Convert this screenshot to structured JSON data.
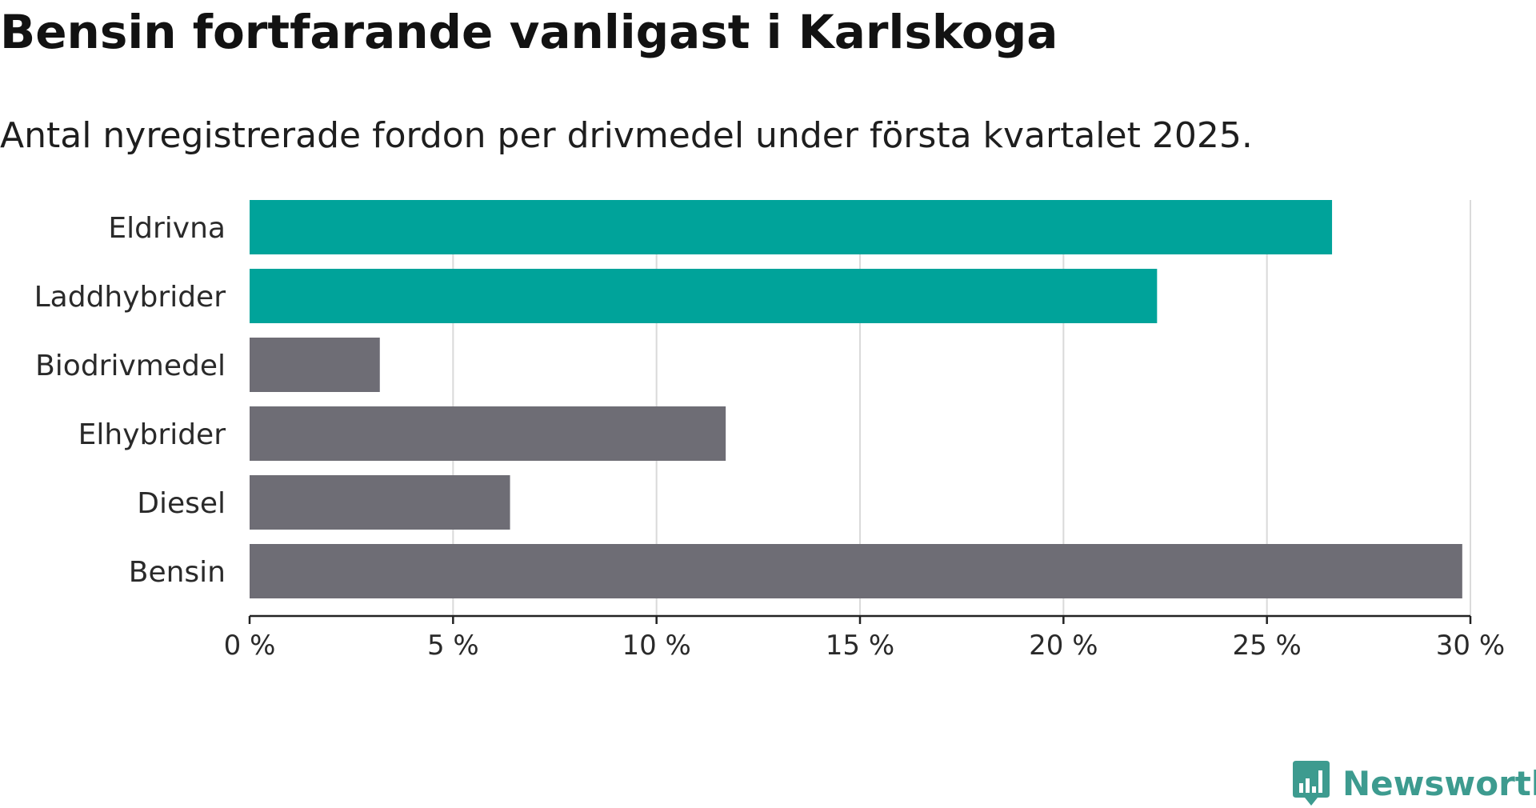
{
  "header": {
    "title": "Bensin fortfarande vanligast i Karlskoga",
    "subtitle": "Antal nyregistrerade fordon per drivmedel under första kvartalet 2025."
  },
  "brand": {
    "name": "Newsworthy",
    "icon": "newsworthy-logo-icon",
    "color": "#3d9b8f"
  },
  "colors": {
    "highlight": "#00a39a",
    "default": "#6e6d75",
    "grid": "#dadada",
    "axis": "#222222"
  },
  "chart_data": {
    "type": "bar",
    "orientation": "horizontal",
    "title": "Bensin fortfarande vanligast i Karlskoga",
    "subtitle": "Antal nyregistrerade fordon per drivmedel under första kvartalet 2025.",
    "xlabel": "",
    "ylabel": "",
    "xlim": [
      0,
      30
    ],
    "xticks": [
      0,
      5,
      10,
      15,
      20,
      25,
      30
    ],
    "xtick_labels": [
      "0 %",
      "5 %",
      "10 %",
      "15 %",
      "20 %",
      "25 %",
      "30 %"
    ],
    "grid": "vertical",
    "categories": [
      "Eldrivna",
      "Laddhybrider",
      "Biodrivmedel",
      "Elhybrider",
      "Diesel",
      "Bensin"
    ],
    "values": [
      26.6,
      22.3,
      3.2,
      11.7,
      6.4,
      29.8
    ],
    "highlighted": [
      "Eldrivna",
      "Laddhybrider"
    ]
  }
}
